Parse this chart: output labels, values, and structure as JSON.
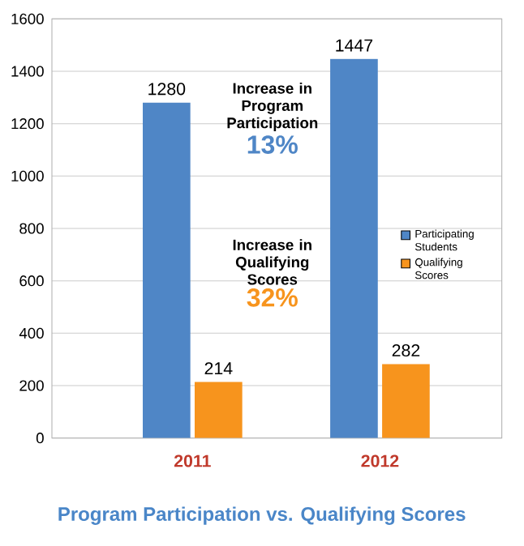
{
  "chart_data": {
    "type": "bar",
    "title": "Program Participation vs. Qualifying Scores",
    "categories": [
      "2011",
      "2012"
    ],
    "series": [
      {
        "name": "Participating Students",
        "color": "#4f86c6",
        "values": [
          1280,
          1447
        ]
      },
      {
        "name": "Qualifying Scores",
        "color": "#f7941d",
        "values": [
          214,
          282
        ]
      }
    ],
    "ylim": [
      0,
      1600
    ],
    "yticks": [
      0,
      200,
      400,
      600,
      800,
      1000,
      1200,
      1400,
      1600
    ],
    "grid": "y",
    "legend": "right",
    "data_labels": true,
    "annotations": [
      "Increase in Program Participation",
      "13%",
      "Increase in Qualifying Scores",
      "32%"
    ]
  }
}
